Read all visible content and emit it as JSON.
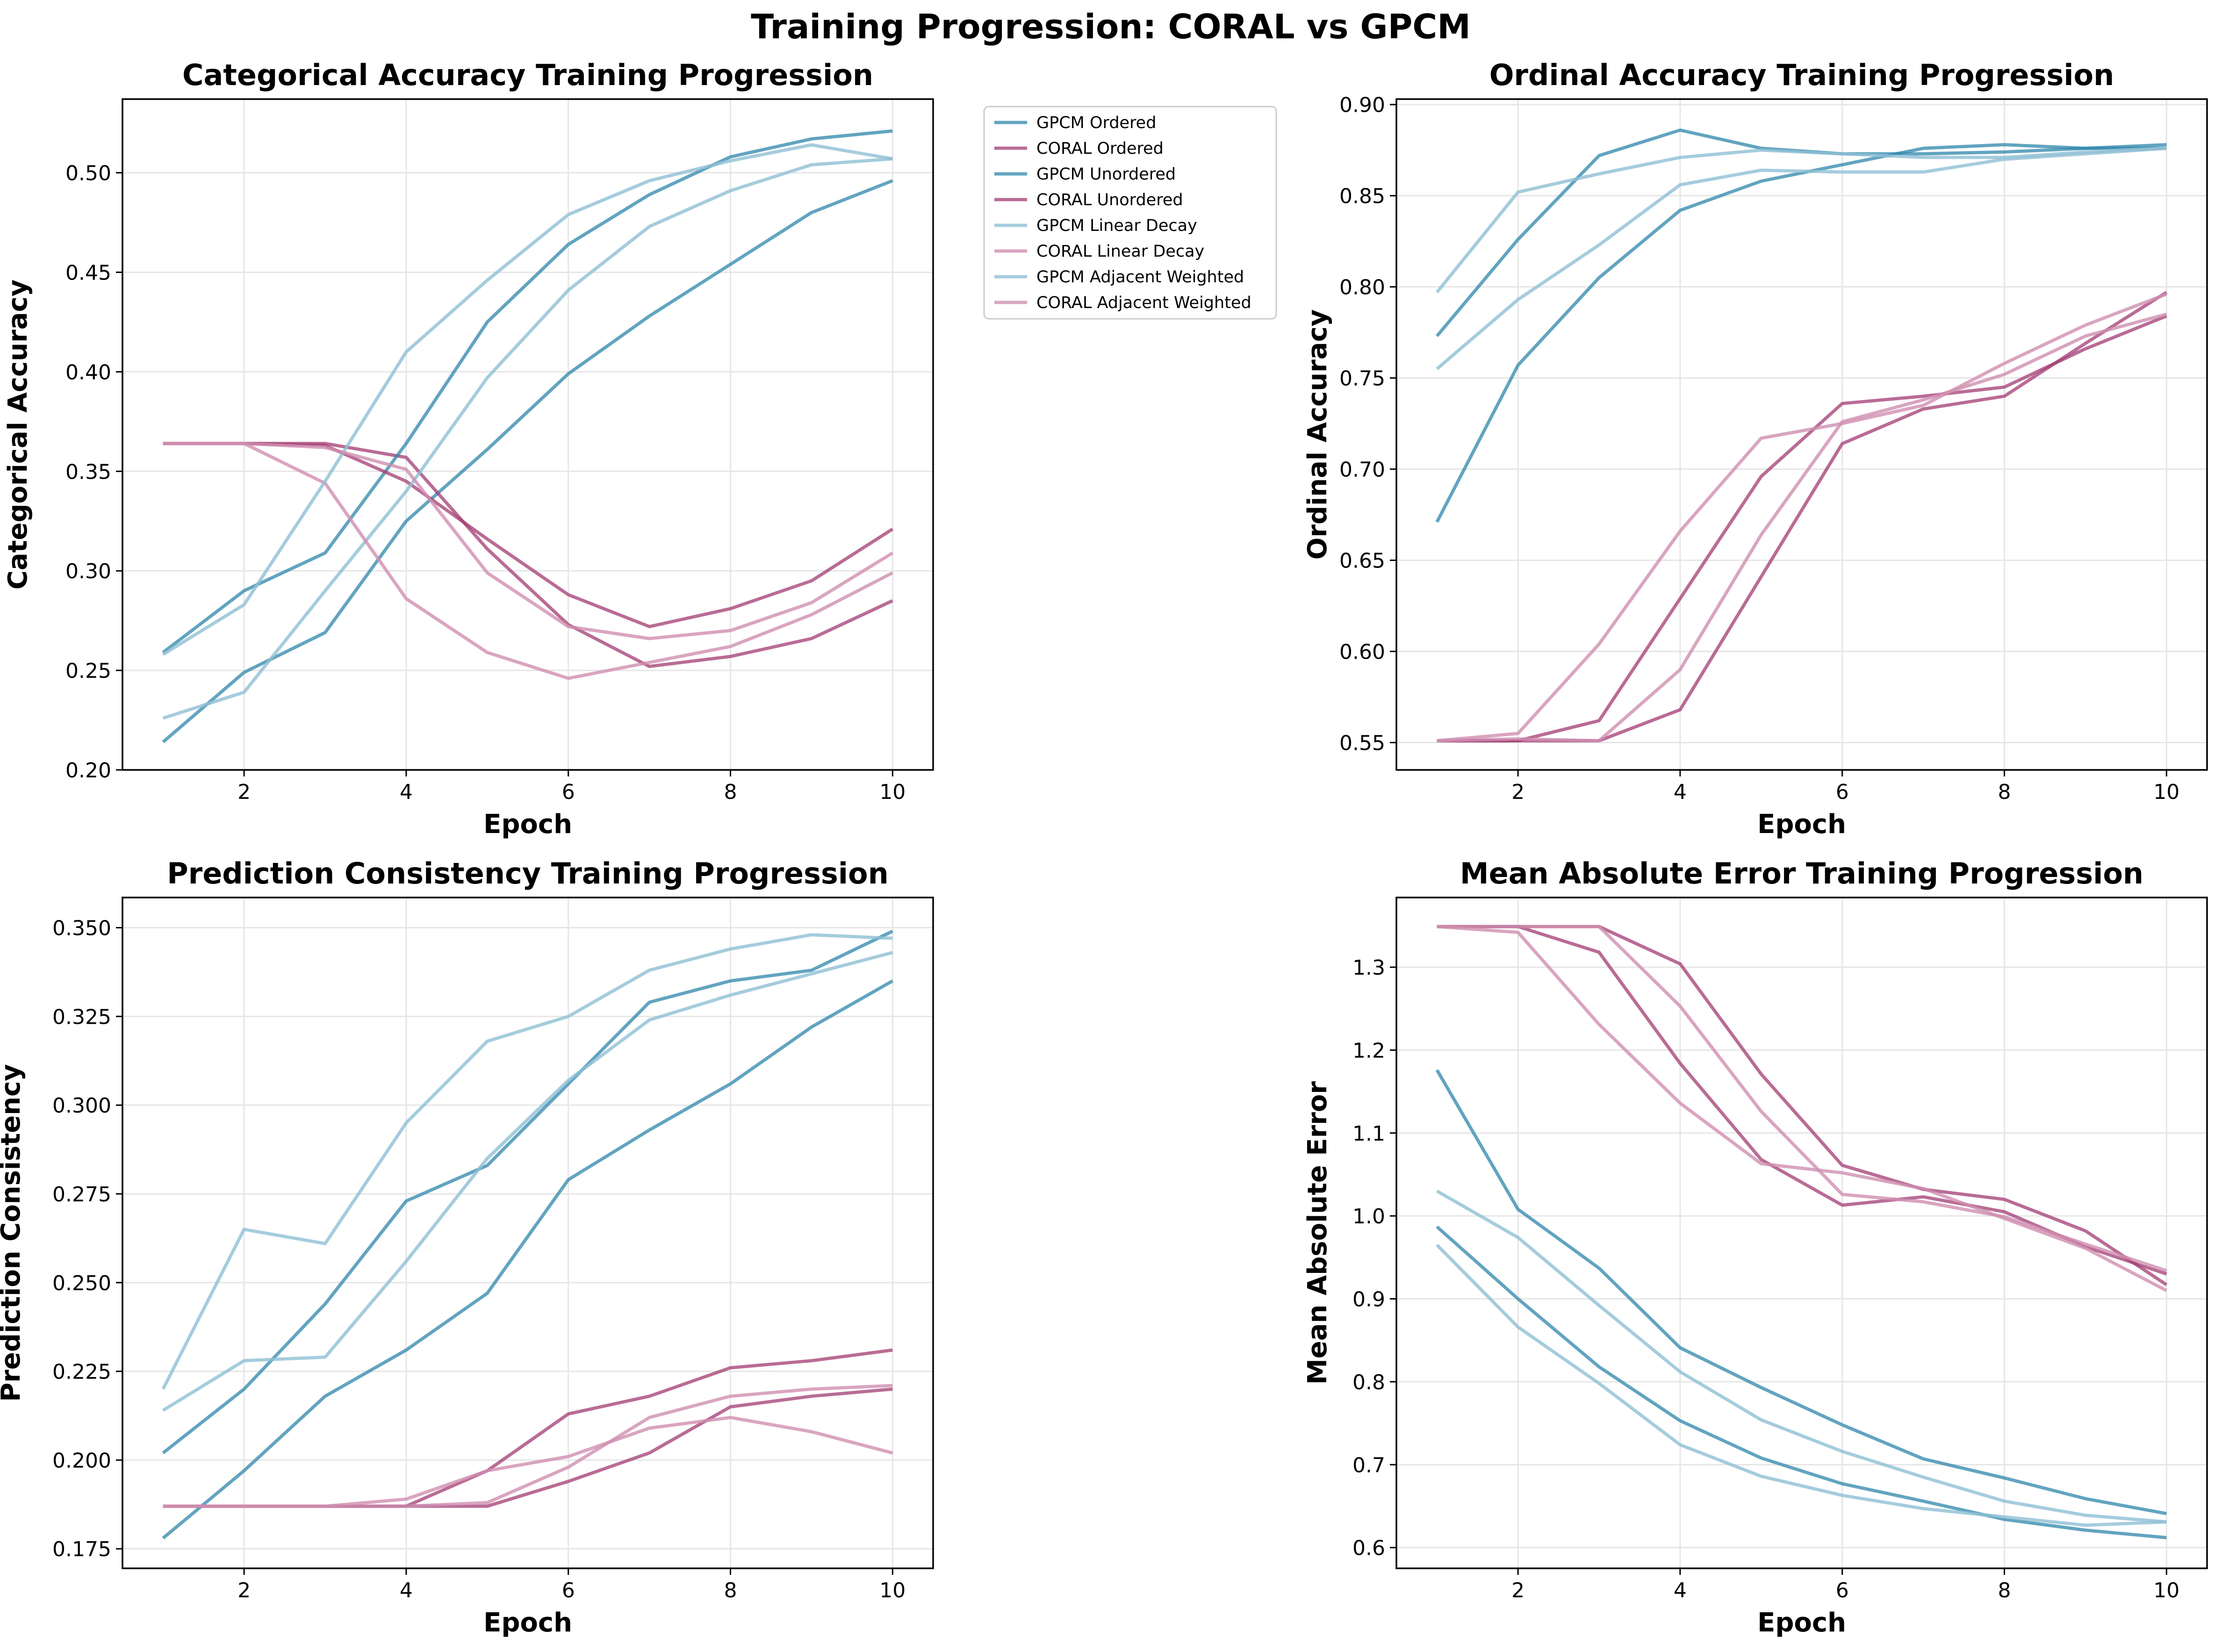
{
  "suptitle": "Training Progression: CORAL vs GPCM",
  "colors": {
    "gpcm_dark": "#2E86AB",
    "gpcm_light": "#8FBFD5",
    "coral_dark": "#A23B72",
    "coral_light": "#CF8FB0",
    "grid": "#e6e6e6",
    "axis": "#000000"
  },
  "legend": [
    "GPCM Ordered",
    "CORAL Ordered",
    "GPCM Unordered",
    "CORAL Unordered",
    "GPCM Linear Decay",
    "CORAL Linear Decay",
    "GPCM Adjacent Weighted",
    "CORAL Adjacent Weighted"
  ],
  "chart_data": [
    {
      "type": "line",
      "title": "Categorical Accuracy Training Progression",
      "xlabel": "Epoch",
      "ylabel": "Categorical Accuracy",
      "x": [
        1,
        2,
        3,
        4,
        5,
        6,
        7,
        8,
        9,
        10
      ],
      "xlim": [
        0.5,
        10.5
      ],
      "ylim": [
        0.2,
        0.537
      ],
      "xticks": [
        2,
        4,
        6,
        8,
        10
      ],
      "yticks": [
        0.2,
        0.25,
        0.3,
        0.35,
        0.4,
        0.45,
        0.5
      ],
      "ytick_labels": [
        "0.20",
        "0.25",
        "0.30",
        "0.35",
        "0.40",
        "0.45",
        "0.50"
      ],
      "grid": true,
      "legend_position": "outside-right",
      "series": [
        {
          "name": "GPCM Ordered",
          "style": "gpcm_dark",
          "values": [
            0.214,
            0.249,
            0.269,
            0.325,
            0.361,
            0.399,
            0.428,
            0.454,
            0.48,
            0.496
          ]
        },
        {
          "name": "CORAL Ordered",
          "style": "coral_dark",
          "values": [
            0.364,
            0.364,
            0.364,
            0.357,
            0.311,
            0.273,
            0.252,
            0.257,
            0.266,
            0.285
          ]
        },
        {
          "name": "GPCM Unordered",
          "style": "gpcm_dark",
          "values": [
            0.259,
            0.29,
            0.309,
            0.364,
            0.425,
            0.464,
            0.489,
            0.508,
            0.517,
            0.521
          ]
        },
        {
          "name": "CORAL Unordered",
          "style": "coral_dark",
          "values": [
            0.364,
            0.364,
            0.363,
            0.345,
            0.316,
            0.288,
            0.272,
            0.281,
            0.295,
            0.321
          ]
        },
        {
          "name": "GPCM Linear Decay",
          "style": "gpcm_light",
          "values": [
            0.226,
            0.239,
            0.29,
            0.34,
            0.397,
            0.441,
            0.473,
            0.491,
            0.504,
            0.507
          ]
        },
        {
          "name": "CORAL Linear Decay",
          "style": "coral_light",
          "values": [
            0.364,
            0.364,
            0.344,
            0.286,
            0.259,
            0.246,
            0.254,
            0.262,
            0.278,
            0.299
          ]
        },
        {
          "name": "GPCM Adjacent Weighted",
          "style": "gpcm_light",
          "values": [
            0.258,
            0.283,
            0.345,
            0.41,
            0.446,
            0.479,
            0.496,
            0.506,
            0.514,
            0.507
          ]
        },
        {
          "name": "CORAL Adjacent Weighted",
          "style": "coral_light",
          "values": [
            0.364,
            0.364,
            0.362,
            0.351,
            0.299,
            0.272,
            0.266,
            0.27,
            0.284,
            0.309
          ]
        }
      ]
    },
    {
      "type": "line",
      "title": "Ordinal Accuracy Training Progression",
      "xlabel": "Epoch",
      "ylabel": "Ordinal Accuracy",
      "x": [
        1,
        2,
        3,
        4,
        5,
        6,
        7,
        8,
        9,
        10
      ],
      "xlim": [
        0.5,
        10.5
      ],
      "ylim": [
        0.535,
        0.903
      ],
      "xticks": [
        2,
        4,
        6,
        8,
        10
      ],
      "yticks": [
        0.55,
        0.6,
        0.65,
        0.7,
        0.75,
        0.8,
        0.85,
        0.9
      ],
      "ytick_labels": [
        "0.55",
        "0.60",
        "0.65",
        "0.70",
        "0.75",
        "0.80",
        "0.85",
        "0.90"
      ],
      "grid": true,
      "series": [
        {
          "name": "GPCM Ordered",
          "style": "gpcm_dark",
          "values": [
            0.671,
            0.757,
            0.805,
            0.842,
            0.858,
            0.867,
            0.876,
            0.878,
            0.876,
            0.878
          ]
        },
        {
          "name": "CORAL Ordered",
          "style": "coral_dark",
          "values": [
            0.551,
            0.551,
            0.551,
            0.568,
            0.641,
            0.714,
            0.733,
            0.74,
            0.769,
            0.797
          ]
        },
        {
          "name": "GPCM Unordered",
          "style": "gpcm_dark",
          "values": [
            0.773,
            0.826,
            0.872,
            0.886,
            0.876,
            0.873,
            0.873,
            0.874,
            0.876,
            0.876
          ]
        },
        {
          "name": "CORAL Unordered",
          "style": "coral_dark",
          "values": [
            0.551,
            0.551,
            0.562,
            0.629,
            0.696,
            0.736,
            0.74,
            0.745,
            0.766,
            0.784
          ]
        },
        {
          "name": "GPCM Linear Decay",
          "style": "gpcm_light",
          "values": [
            0.755,
            0.793,
            0.823,
            0.856,
            0.864,
            0.863,
            0.863,
            0.87,
            0.873,
            0.876
          ]
        },
        {
          "name": "CORAL Linear Decay",
          "style": "coral_light",
          "values": [
            0.551,
            0.552,
            0.551,
            0.59,
            0.664,
            0.726,
            0.738,
            0.752,
            0.773,
            0.785
          ]
        },
        {
          "name": "GPCM Adjacent Weighted",
          "style": "gpcm_light",
          "values": [
            0.797,
            0.852,
            0.862,
            0.871,
            0.875,
            0.873,
            0.871,
            0.871,
            0.874,
            0.876
          ]
        },
        {
          "name": "CORAL Adjacent Weighted",
          "style": "coral_light",
          "values": [
            0.551,
            0.555,
            0.604,
            0.666,
            0.717,
            0.725,
            0.735,
            0.758,
            0.779,
            0.796
          ]
        }
      ]
    },
    {
      "type": "line",
      "title": "Prediction Consistency Training Progression",
      "xlabel": "Epoch",
      "ylabel": "Prediction Consistency",
      "x": [
        1,
        2,
        3,
        4,
        5,
        6,
        7,
        8,
        9,
        10
      ],
      "xlim": [
        0.5,
        10.5
      ],
      "ylim": [
        0.1695,
        0.3585
      ],
      "xticks": [
        2,
        4,
        6,
        8,
        10
      ],
      "yticks": [
        0.175,
        0.2,
        0.225,
        0.25,
        0.275,
        0.3,
        0.325,
        0.35
      ],
      "ytick_labels": [
        "0.175",
        "0.200",
        "0.225",
        "0.250",
        "0.275",
        "0.300",
        "0.325",
        "0.350"
      ],
      "grid": true,
      "series": [
        {
          "name": "GPCM Ordered",
          "style": "gpcm_dark",
          "values": [
            0.178,
            0.197,
            0.218,
            0.231,
            0.247,
            0.279,
            0.293,
            0.306,
            0.322,
            0.335
          ]
        },
        {
          "name": "CORAL Ordered",
          "style": "coral_dark",
          "values": [
            0.187,
            0.187,
            0.187,
            0.187,
            0.187,
            0.194,
            0.202,
            0.215,
            0.218,
            0.22
          ]
        },
        {
          "name": "GPCM Unordered",
          "style": "gpcm_dark",
          "values": [
            0.202,
            0.22,
            0.244,
            0.273,
            0.283,
            0.306,
            0.329,
            0.335,
            0.338,
            0.349
          ]
        },
        {
          "name": "CORAL Unordered",
          "style": "coral_dark",
          "values": [
            0.187,
            0.187,
            0.187,
            0.187,
            0.197,
            0.213,
            0.218,
            0.226,
            0.228,
            0.231
          ]
        },
        {
          "name": "GPCM Linear Decay",
          "style": "gpcm_light",
          "values": [
            0.214,
            0.228,
            0.229,
            0.256,
            0.285,
            0.307,
            0.324,
            0.331,
            0.337,
            0.343
          ]
        },
        {
          "name": "CORAL Linear Decay",
          "style": "coral_light",
          "values": [
            0.187,
            0.187,
            0.187,
            0.187,
            0.188,
            0.198,
            0.212,
            0.218,
            0.22,
            0.221
          ]
        },
        {
          "name": "GPCM Adjacent Weighted",
          "style": "gpcm_light",
          "values": [
            0.22,
            0.265,
            0.261,
            0.295,
            0.318,
            0.325,
            0.338,
            0.344,
            0.348,
            0.347
          ]
        },
        {
          "name": "CORAL Adjacent Weighted",
          "style": "coral_light",
          "values": [
            0.187,
            0.187,
            0.187,
            0.189,
            0.197,
            0.201,
            0.209,
            0.212,
            0.208,
            0.202
          ]
        }
      ]
    },
    {
      "type": "line",
      "title": "Mean Absolute Error Training Progression",
      "xlabel": "Epoch",
      "ylabel": "Mean Absolute Error",
      "x": [
        1,
        2,
        3,
        4,
        5,
        6,
        7,
        8,
        9,
        10
      ],
      "xlim": [
        0.5,
        10.5
      ],
      "ylim": [
        0.575,
        1.384
      ],
      "xticks": [
        2,
        4,
        6,
        8,
        10
      ],
      "yticks": [
        0.6,
        0.7,
        0.8,
        0.9,
        1.0,
        1.1,
        1.2,
        1.3
      ],
      "ytick_labels": [
        "0.6",
        "0.7",
        "0.8",
        "0.9",
        "1.0",
        "1.1",
        "1.2",
        "1.3"
      ],
      "grid": true,
      "series": [
        {
          "name": "GPCM Ordered",
          "style": "gpcm_dark",
          "values": [
            0.987,
            0.9,
            0.818,
            0.753,
            0.708,
            0.677,
            0.656,
            0.634,
            0.621,
            0.612
          ]
        },
        {
          "name": "CORAL Ordered",
          "style": "coral_dark",
          "values": [
            1.349,
            1.349,
            1.349,
            1.304,
            1.171,
            1.061,
            1.032,
            1.02,
            0.982,
            0.917
          ]
        },
        {
          "name": "GPCM Unordered",
          "style": "gpcm_dark",
          "values": [
            1.176,
            1.008,
            0.937,
            0.841,
            0.793,
            0.748,
            0.707,
            0.684,
            0.659,
            0.641
          ]
        },
        {
          "name": "CORAL Unordered",
          "style": "coral_dark",
          "values": [
            1.349,
            1.349,
            1.318,
            1.184,
            1.068,
            1.013,
            1.023,
            1.005,
            0.963,
            0.93
          ]
        },
        {
          "name": "GPCM Linear Decay",
          "style": "gpcm_light",
          "values": [
            1.03,
            0.974,
            0.892,
            0.812,
            0.754,
            0.716,
            0.685,
            0.656,
            0.639,
            0.631
          ]
        },
        {
          "name": "CORAL Linear Decay",
          "style": "coral_light",
          "values": [
            1.349,
            1.349,
            1.349,
            1.253,
            1.126,
            1.026,
            1.017,
            0.999,
            0.966,
            0.934
          ]
        },
        {
          "name": "GPCM Adjacent Weighted",
          "style": "gpcm_light",
          "values": [
            0.965,
            0.866,
            0.798,
            0.724,
            0.686,
            0.663,
            0.647,
            0.637,
            0.627,
            0.631
          ]
        },
        {
          "name": "CORAL Adjacent Weighted",
          "style": "coral_light",
          "values": [
            1.349,
            1.342,
            1.231,
            1.136,
            1.063,
            1.052,
            1.033,
            0.997,
            0.961,
            0.91
          ]
        }
      ]
    }
  ]
}
